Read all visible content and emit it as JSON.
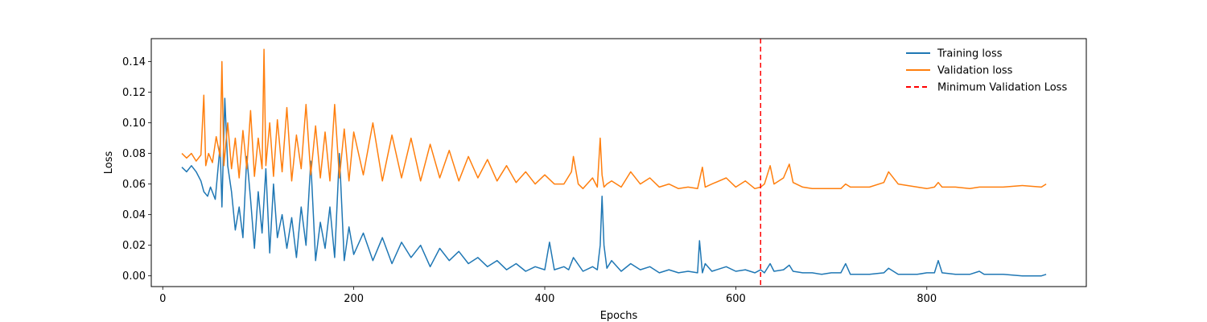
{
  "chart_data": {
    "type": "line",
    "title": "",
    "xlabel": "Epochs",
    "ylabel": "Loss",
    "xlim": [
      -12,
      967
    ],
    "ylim": [
      -0.007,
      0.155
    ],
    "x_ticks": [
      0,
      200,
      400,
      600,
      800
    ],
    "y_ticks": [
      0.0,
      0.02,
      0.04,
      0.06,
      0.08,
      0.1,
      0.12,
      0.14
    ],
    "legend_position": "top-right",
    "legend_frame": false,
    "grid": false,
    "min_val_epoch": 626,
    "series": [
      {
        "name": "Training loss",
        "color": "#1f77b4",
        "x": [
          20,
          25,
          30,
          35,
          40,
          43,
          47,
          50,
          55,
          60,
          62,
          65,
          68,
          72,
          76,
          80,
          84,
          88,
          92,
          96,
          100,
          104,
          108,
          112,
          116,
          120,
          125,
          130,
          135,
          140,
          145,
          150,
          155,
          160,
          165,
          170,
          175,
          180,
          185,
          190,
          195,
          200,
          210,
          220,
          230,
          240,
          250,
          260,
          270,
          280,
          290,
          300,
          310,
          320,
          330,
          340,
          350,
          360,
          370,
          380,
          390,
          400,
          405,
          410,
          420,
          425,
          430,
          440,
          450,
          455,
          458,
          460,
          462,
          465,
          470,
          480,
          490,
          500,
          510,
          520,
          530,
          540,
          550,
          560,
          562,
          565,
          568,
          575,
          590,
          600,
          610,
          620,
          626,
          630,
          636,
          640,
          650,
          656,
          660,
          670,
          680,
          690,
          700,
          710,
          715,
          720,
          740,
          755,
          760,
          770,
          780,
          790,
          800,
          808,
          812,
          816,
          830,
          845,
          855,
          860,
          880,
          900,
          920,
          925
        ],
        "y": [
          0.071,
          0.068,
          0.072,
          0.068,
          0.062,
          0.055,
          0.052,
          0.058,
          0.05,
          0.085,
          0.045,
          0.116,
          0.072,
          0.055,
          0.03,
          0.045,
          0.025,
          0.078,
          0.05,
          0.018,
          0.055,
          0.028,
          0.07,
          0.015,
          0.06,
          0.025,
          0.04,
          0.018,
          0.038,
          0.012,
          0.045,
          0.02,
          0.075,
          0.01,
          0.035,
          0.018,
          0.045,
          0.012,
          0.08,
          0.01,
          0.032,
          0.014,
          0.028,
          0.01,
          0.025,
          0.008,
          0.022,
          0.012,
          0.02,
          0.006,
          0.018,
          0.01,
          0.016,
          0.008,
          0.012,
          0.006,
          0.01,
          0.004,
          0.008,
          0.003,
          0.006,
          0.004,
          0.022,
          0.004,
          0.006,
          0.004,
          0.012,
          0.003,
          0.006,
          0.004,
          0.02,
          0.052,
          0.02,
          0.005,
          0.01,
          0.003,
          0.008,
          0.004,
          0.006,
          0.002,
          0.004,
          0.002,
          0.003,
          0.002,
          0.023,
          0.002,
          0.008,
          0.003,
          0.006,
          0.003,
          0.004,
          0.002,
          0.004,
          0.002,
          0.008,
          0.003,
          0.004,
          0.007,
          0.003,
          0.002,
          0.002,
          0.001,
          0.002,
          0.002,
          0.008,
          0.001,
          0.001,
          0.002,
          0.005,
          0.001,
          0.001,
          0.001,
          0.002,
          0.002,
          0.01,
          0.002,
          0.001,
          0.001,
          0.003,
          0.001,
          0.001,
          0.0,
          0.0,
          0.001
        ]
      },
      {
        "name": "Validation loss",
        "color": "#ff7f0e",
        "x": [
          20,
          25,
          30,
          35,
          40,
          43,
          45,
          48,
          52,
          56,
          60,
          62,
          64,
          68,
          72,
          76,
          80,
          84,
          88,
          92,
          96,
          100,
          104,
          106,
          108,
          112,
          116,
          120,
          125,
          130,
          135,
          140,
          145,
          150,
          155,
          160,
          165,
          170,
          175,
          180,
          185,
          190,
          195,
          200,
          210,
          220,
          230,
          240,
          250,
          260,
          270,
          280,
          290,
          300,
          310,
          320,
          330,
          340,
          350,
          360,
          370,
          380,
          390,
          400,
          410,
          420,
          428,
          430,
          435,
          440,
          450,
          455,
          458,
          460,
          462,
          465,
          470,
          480,
          490,
          500,
          510,
          520,
          530,
          540,
          550,
          560,
          565,
          568,
          575,
          590,
          600,
          610,
          620,
          626,
          630,
          636,
          640,
          650,
          656,
          660,
          670,
          680,
          690,
          700,
          710,
          715,
          720,
          740,
          755,
          760,
          770,
          780,
          790,
          800,
          808,
          812,
          816,
          830,
          845,
          855,
          860,
          880,
          900,
          920,
          925
        ],
        "y": [
          0.08,
          0.077,
          0.08,
          0.075,
          0.079,
          0.118,
          0.072,
          0.08,
          0.074,
          0.091,
          0.078,
          0.14,
          0.072,
          0.1,
          0.07,
          0.09,
          0.064,
          0.095,
          0.07,
          0.108,
          0.065,
          0.09,
          0.07,
          0.148,
          0.072,
          0.1,
          0.065,
          0.102,
          0.068,
          0.11,
          0.062,
          0.092,
          0.07,
          0.112,
          0.066,
          0.098,
          0.064,
          0.094,
          0.062,
          0.112,
          0.064,
          0.096,
          0.062,
          0.094,
          0.066,
          0.1,
          0.062,
          0.092,
          0.064,
          0.09,
          0.062,
          0.086,
          0.064,
          0.082,
          0.062,
          0.078,
          0.064,
          0.076,
          0.062,
          0.072,
          0.061,
          0.068,
          0.06,
          0.066,
          0.06,
          0.06,
          0.068,
          0.078,
          0.06,
          0.057,
          0.064,
          0.058,
          0.09,
          0.066,
          0.058,
          0.06,
          0.062,
          0.058,
          0.068,
          0.06,
          0.064,
          0.058,
          0.06,
          0.057,
          0.058,
          0.057,
          0.071,
          0.058,
          0.06,
          0.064,
          0.058,
          0.062,
          0.057,
          0.058,
          0.06,
          0.072,
          0.06,
          0.064,
          0.073,
          0.061,
          0.058,
          0.057,
          0.057,
          0.057,
          0.057,
          0.06,
          0.058,
          0.058,
          0.061,
          0.068,
          0.06,
          0.059,
          0.058,
          0.057,
          0.058,
          0.061,
          0.058,
          0.058,
          0.057,
          0.058,
          0.058,
          0.058,
          0.059,
          0.058,
          0.06
        ]
      }
    ],
    "reference_line": {
      "name": "Minimum Validation Loss",
      "x": 626,
      "color": "#ff0000",
      "style": "dashed"
    }
  }
}
